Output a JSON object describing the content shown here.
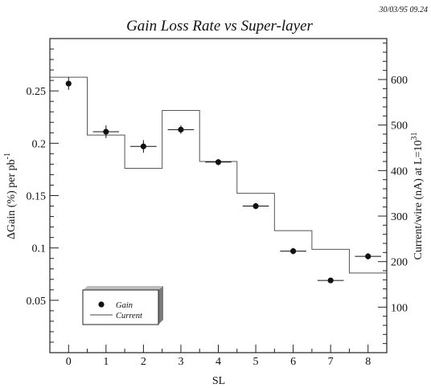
{
  "timestamp": "30/03/95  09.24",
  "chart_data": {
    "type": "scatter",
    "title": "Gain Loss Rate vs Super-layer",
    "xlabel": "SL",
    "ylabel": "ΔGain (%) per pb",
    "ylabel_sup": "-1",
    "y2label": "Current/wire (nA) at L=10",
    "y2label_sup": "31",
    "x_ticks": [
      "0",
      "1",
      "2",
      "3",
      "4",
      "5",
      "6",
      "7",
      "8"
    ],
    "y_ticks": [
      "0.05",
      "0.1",
      "0.15",
      "0.2",
      "0.25"
    ],
    "y2_ticks": [
      "100",
      "200",
      "300",
      "400",
      "500",
      "600"
    ],
    "xlim": [
      -0.5,
      8.5
    ],
    "ylim": [
      0,
      0.3
    ],
    "y2lim": [
      0,
      690
    ],
    "series": [
      {
        "name": "Gain",
        "marker": "filled-circle",
        "x": [
          0,
          1,
          2,
          3,
          4,
          5,
          6,
          7,
          8
        ],
        "y": [
          0.257,
          0.211,
          0.197,
          0.213,
          0.182,
          0.14,
          0.097,
          0.069,
          0.092
        ],
        "xerr": [
          0,
          0.35,
          0.35,
          0.35,
          0.35,
          0.35,
          0.35,
          0.35,
          0.35
        ],
        "yerr": [
          0.006,
          0.006,
          0.006,
          0.004,
          0.003,
          0.003,
          0.003,
          0.002,
          0.003
        ]
      },
      {
        "name": "Current",
        "style": "histogram-step",
        "axis": "right",
        "x": [
          0,
          1,
          2,
          3,
          4,
          5,
          6,
          7,
          8
        ],
        "y": [
          605,
          478,
          405,
          532,
          420,
          350,
          268,
          227,
          175
        ]
      }
    ],
    "legend": {
      "position": "bottom-left",
      "entries": [
        "Gain",
        "Current"
      ]
    }
  }
}
